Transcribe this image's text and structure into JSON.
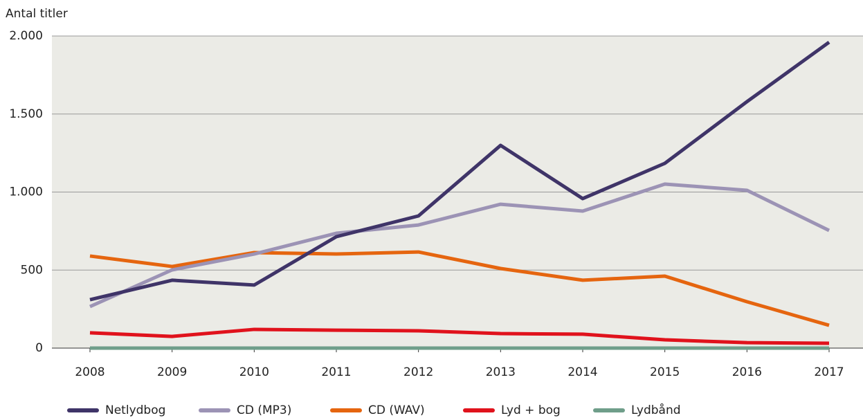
{
  "chart_data": {
    "type": "line",
    "y_axis_label": "Antal titler",
    "categories": [
      "2008",
      "2009",
      "2010",
      "2011",
      "2012",
      "2013",
      "2014",
      "2015",
      "2016",
      "2017"
    ],
    "series": [
      {
        "name": "Netlydbog",
        "color": "#3f3468",
        "values": [
          310,
          435,
          404,
          714,
          847,
          1299,
          958,
          1184,
          1579,
          1960
        ]
      },
      {
        "name": "CD (MP3)",
        "color": "#9c93b5",
        "values": [
          266,
          501,
          603,
          736,
          789,
          922,
          878,
          1051,
          1011,
          754
        ]
      },
      {
        "name": "CD (WAV)",
        "color": "#e5650f",
        "values": [
          590,
          523,
          612,
          603,
          616,
          510,
          435,
          461,
          297,
          146
        ]
      },
      {
        "name": "Lyd + bog",
        "color": "#e0121c",
        "values": [
          98,
          75,
          120,
          115,
          111,
          93,
          89,
          53,
          35,
          31
        ]
      },
      {
        "name": "Lydbånd",
        "color": "#6f9e8a",
        "values": [
          0,
          0,
          0,
          0,
          0,
          0,
          0,
          0,
          0,
          0
        ]
      }
    ],
    "ylim": [
      0,
      2000
    ],
    "yticks": [
      0,
      500,
      {
        "value": 1000,
        "label": "1.000"
      },
      {
        "value": 1500,
        "label": "1.500"
      },
      {
        "value": 2000,
        "label": "2.000"
      }
    ],
    "grid": true,
    "legend": "bottom"
  }
}
